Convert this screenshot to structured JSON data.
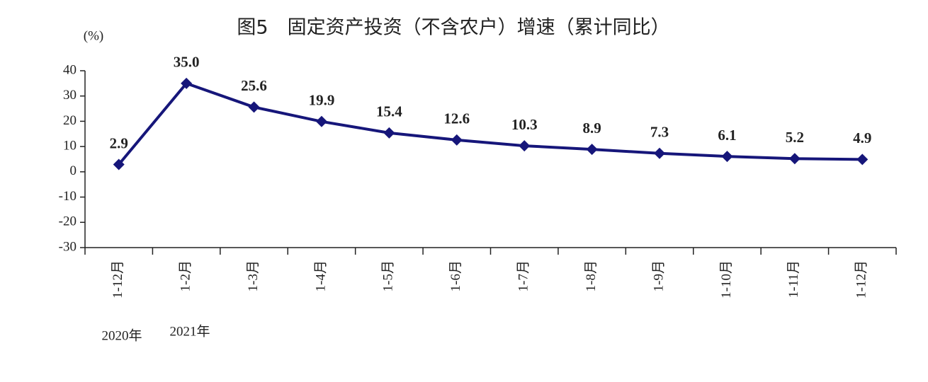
{
  "chart_data": {
    "type": "line",
    "title": "图5　固定资产投资（不含农户）增速（累计同比）",
    "y_axis_label": "(%)",
    "annotations": [
      "2020年",
      "2021年"
    ],
    "categories": [
      "1-12月",
      "1-2月",
      "1-3月",
      "1-4月",
      "1-5月",
      "1-6月",
      "1-7月",
      "1-8月",
      "1-9月",
      "1-10月",
      "1-11月",
      "1-12月"
    ],
    "series": [
      {
        "name": "固定资产投资增速",
        "color": "#16167a",
        "values": [
          2.9,
          35.0,
          25.6,
          19.9,
          15.4,
          12.6,
          10.3,
          8.9,
          7.3,
          6.1,
          5.2,
          4.9
        ],
        "value_labels": [
          "2.9",
          "35.0",
          "25.6",
          "19.9",
          "15.4",
          "12.6",
          "10.3",
          "8.9",
          "7.3",
          "6.1",
          "5.2",
          "4.9"
        ]
      }
    ],
    "ylim": [
      -30,
      40
    ],
    "yticks": [
      -30,
      -20,
      -10,
      0,
      10,
      20,
      30,
      40
    ],
    "grid": false
  }
}
